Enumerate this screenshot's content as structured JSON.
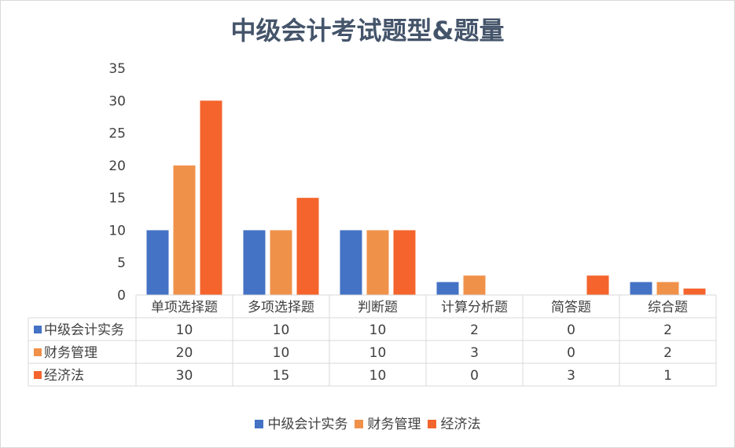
{
  "chart_data": {
    "type": "bar",
    "title": "中级会计考试题型&题量",
    "categories": [
      "单项选择题",
      "多项选择题",
      "判断题",
      "计算分析题",
      "简答题",
      "综合题"
    ],
    "series": [
      {
        "name": "中级会计实务",
        "color": "#4472c4",
        "values": [
          10,
          10,
          10,
          2,
          0,
          2
        ]
      },
      {
        "name": "财务管理",
        "color": "#f0914a",
        "values": [
          20,
          10,
          10,
          3,
          0,
          2
        ]
      },
      {
        "name": "经济法",
        "color": "#f4642c",
        "values": [
          30,
          15,
          10,
          0,
          3,
          1
        ]
      }
    ],
    "yticks": [
      0,
      5,
      10,
      15,
      20,
      25,
      30,
      35
    ],
    "ylim": [
      0,
      35
    ],
    "grid": false,
    "data_table": true,
    "legend_position": "bottom"
  }
}
